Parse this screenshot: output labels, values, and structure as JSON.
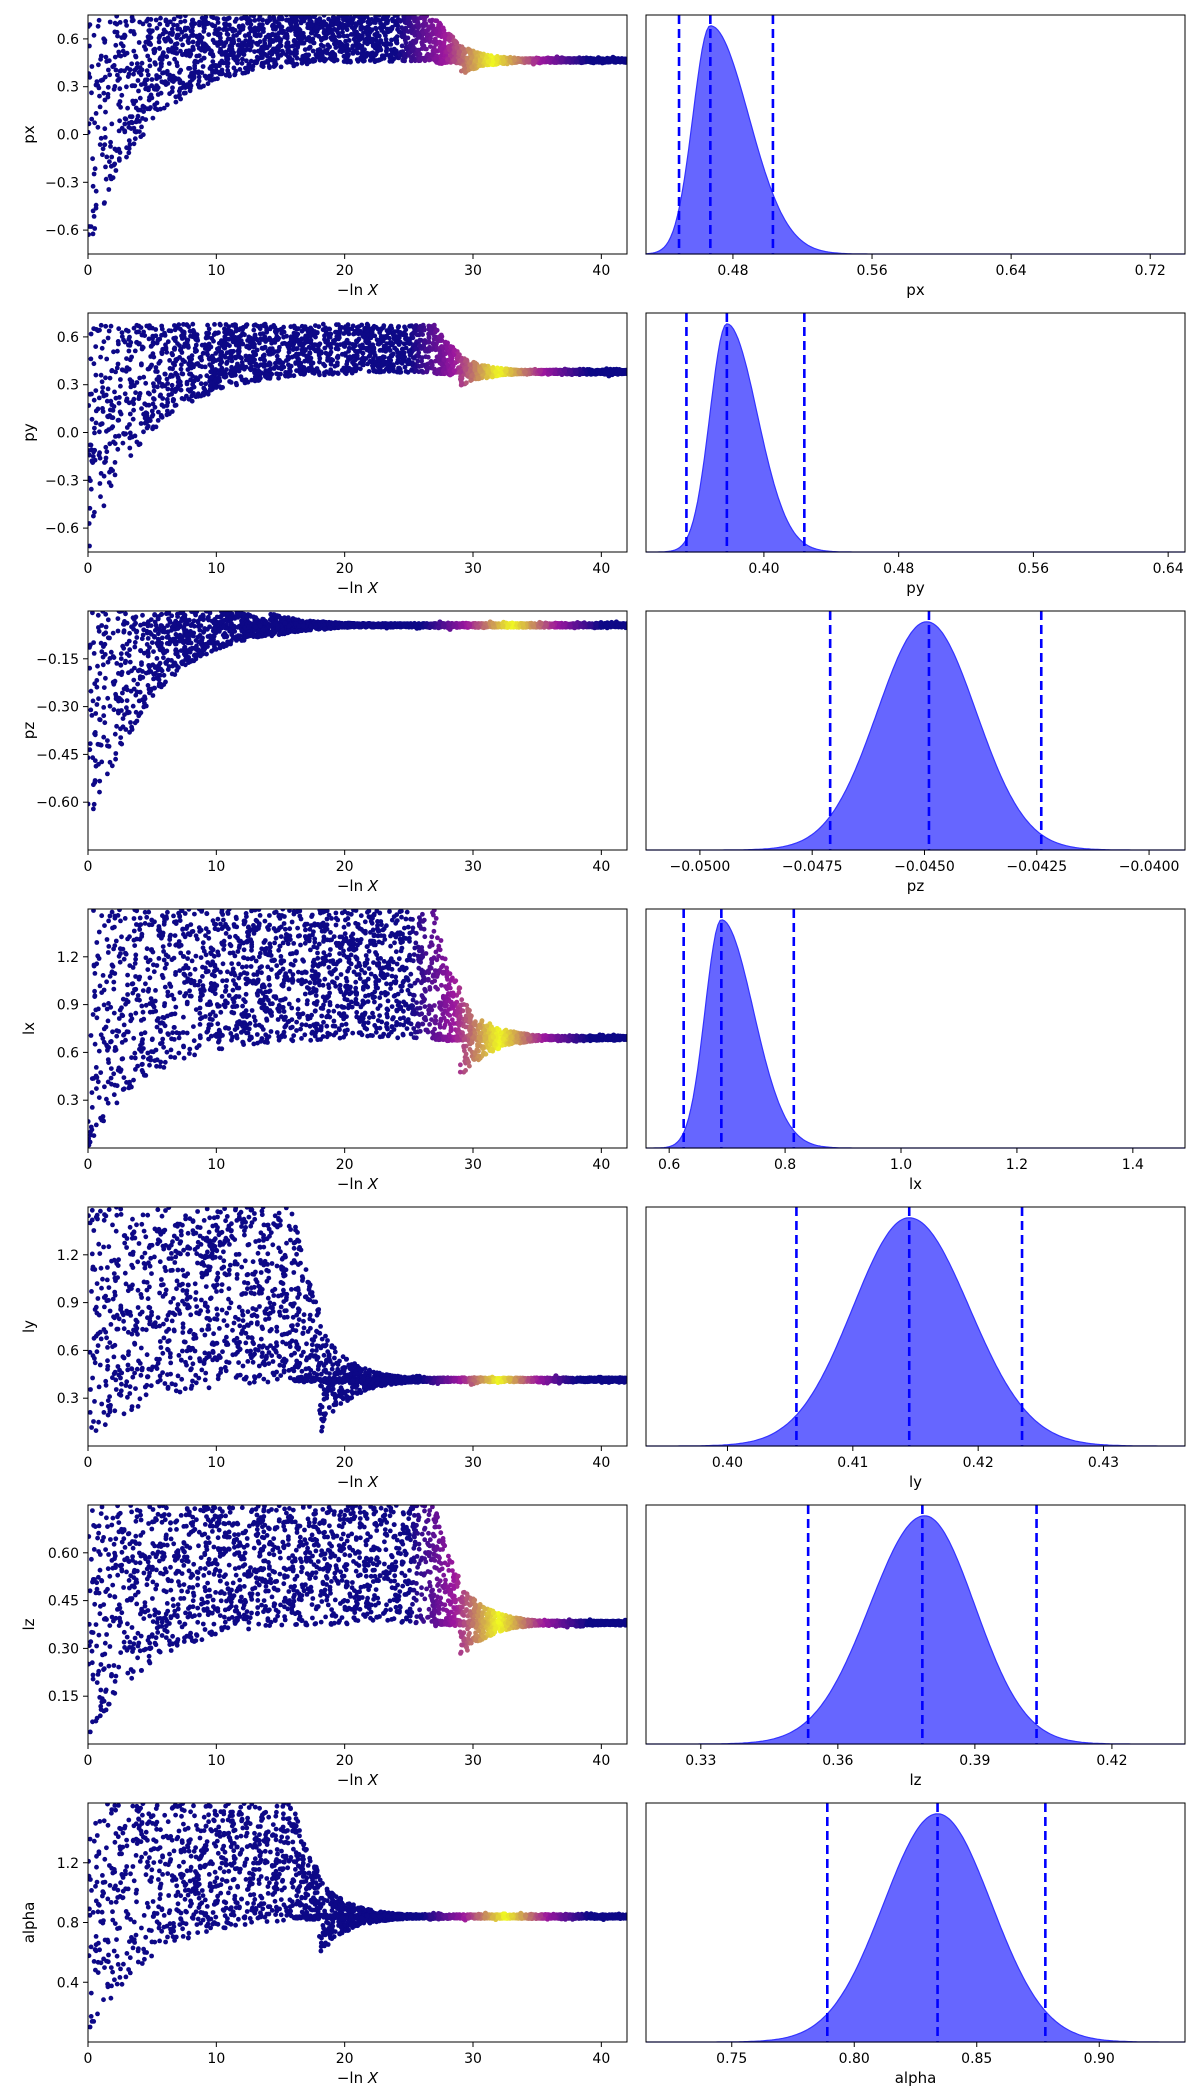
{
  "trace_x_axis": {
    "label_prefix": "−ln",
    "label_var": "X",
    "range": [
      0,
      42
    ],
    "ticks": [
      "0",
      "10",
      "20",
      "30",
      "40"
    ]
  },
  "colors": {
    "scatter_low": "#0d0887",
    "scatter_mid": "#9c179e",
    "scatter_high": "#f0f921",
    "posterior_fill": "#6666ff",
    "posterior_edge": "#3333ff",
    "quantile_line": "#0000ff"
  },
  "chart_data": [
    {
      "type": "scatter",
      "param": "px",
      "trace": {
        "ylabel": "px",
        "ylim": [
          -0.75,
          0.75
        ],
        "yticks": [
          "0.6",
          "0.3",
          "0.0",
          "−0.3",
          "−0.6"
        ],
        "ytick_values": [
          0.6,
          0.3,
          0.0,
          -0.3,
          -0.6
        ],
        "final_value": 0.465,
        "envelope_top": 0.75,
        "bright_range": [
          27,
          36
        ],
        "noisy_until": 27,
        "lower_bound_start": -0.75
      },
      "posterior": {
        "xlabel": "px",
        "xlim": [
          0.43,
          0.74
        ],
        "xticks": [
          "0.48",
          "0.56",
          "0.64",
          "0.72"
        ],
        "xtick_values": [
          0.48,
          0.56,
          0.64,
          0.72
        ],
        "mode": 0.467,
        "quantiles": [
          0.449,
          0.467,
          0.503
        ],
        "left_width": 0.01,
        "right_width": 0.022
      }
    },
    {
      "type": "scatter",
      "param": "py",
      "trace": {
        "ylabel": "py",
        "ylim": [
          -0.75,
          0.75
        ],
        "yticks": [
          "0.6",
          "0.3",
          "0.0",
          "−0.3",
          "−0.6"
        ],
        "ytick_values": [
          0.6,
          0.3,
          0.0,
          -0.3,
          -0.6
        ],
        "final_value": 0.38,
        "envelope_top": 0.68,
        "bright_range": [
          28,
          36
        ],
        "noisy_until": 27,
        "lower_bound_start": -0.75
      },
      "posterior": {
        "xlabel": "py",
        "xlim": [
          0.33,
          0.65
        ],
        "xticks": [
          "0.40",
          "0.48",
          "0.56",
          "0.64"
        ],
        "xtick_values": [
          0.4,
          0.48,
          0.56,
          0.64
        ],
        "mode": 0.378,
        "quantiles": [
          0.354,
          0.378,
          0.424
        ],
        "left_width": 0.01,
        "right_width": 0.018
      }
    },
    {
      "type": "scatter",
      "param": "pz",
      "trace": {
        "ylabel": "pz",
        "ylim": [
          -0.75,
          0.0
        ],
        "yticks": [
          "−0.15",
          "−0.30",
          "−0.45",
          "−0.60"
        ],
        "ytick_values": [
          -0.15,
          -0.3,
          -0.45,
          -0.6
        ],
        "final_value": -0.045,
        "envelope_top": 0.0,
        "bright_range": [
          29,
          37
        ],
        "noisy_until": 12,
        "lower_bound_start": -0.75
      },
      "posterior": {
        "xlabel": "pz",
        "xlim": [
          -0.0512,
          -0.0392
        ],
        "xticks": [
          "−0.0500",
          "−0.0475",
          "−0.0450",
          "−0.0425",
          "−0.0400"
        ],
        "xtick_values": [
          -0.05,
          -0.0475,
          -0.045,
          -0.0425,
          -0.04
        ],
        "mode": -0.04495,
        "quantiles": [
          -0.0471,
          -0.0449,
          -0.0424
        ],
        "left_width": 0.0011,
        "right_width": 0.0011
      }
    },
    {
      "type": "scatter",
      "param": "lx",
      "trace": {
        "ylabel": "lx",
        "ylim": [
          0.0,
          1.5
        ],
        "yticks": [
          "1.2",
          "0.9",
          "0.6",
          "0.3"
        ],
        "ytick_values": [
          1.2,
          0.9,
          0.6,
          0.3
        ],
        "final_value": 0.69,
        "envelope_top": 1.5,
        "bright_range": [
          28,
          36
        ],
        "noisy_until": 27,
        "lower_bound_start": 0.0
      },
      "posterior": {
        "xlabel": "lx",
        "xlim": [
          0.56,
          1.49
        ],
        "xticks": [
          "0.6",
          "0.8",
          "1.0",
          "1.2",
          "1.4"
        ],
        "xtick_values": [
          0.6,
          0.8,
          1.0,
          1.2,
          1.4
        ],
        "mode": 0.69,
        "quantiles": [
          0.625,
          0.69,
          0.815
        ],
        "left_width": 0.028,
        "right_width": 0.055
      }
    },
    {
      "type": "scatter",
      "param": "ly",
      "trace": {
        "ylabel": "ly",
        "ylim": [
          0.0,
          1.5
        ],
        "yticks": [
          "1.2",
          "0.9",
          "0.6",
          "0.3"
        ],
        "ytick_values": [
          1.2,
          0.9,
          0.6,
          0.3
        ],
        "final_value": 0.415,
        "envelope_top": 1.5,
        "bright_range": [
          29,
          35
        ],
        "noisy_until": 16,
        "lower_bound_start": 0.0
      },
      "posterior": {
        "xlabel": "ly",
        "xlim": [
          0.3935,
          0.4365
        ],
        "xticks": [
          "0.40",
          "0.41",
          "0.42",
          "0.43"
        ],
        "xtick_values": [
          0.4,
          0.41,
          0.42,
          0.43
        ],
        "mode": 0.4145,
        "quantiles": [
          0.4055,
          0.4145,
          0.4235
        ],
        "left_width": 0.0045,
        "right_width": 0.0048
      }
    },
    {
      "type": "scatter",
      "param": "lz",
      "trace": {
        "ylabel": "lz",
        "ylim": [
          0.0,
          0.75
        ],
        "yticks": [
          "0.60",
          "0.45",
          "0.30",
          "0.15"
        ],
        "ytick_values": [
          0.6,
          0.45,
          0.3,
          0.15
        ],
        "final_value": 0.38,
        "envelope_top": 0.75,
        "bright_range": [
          28,
          36
        ],
        "noisy_until": 27,
        "lower_bound_start": 0.0
      },
      "posterior": {
        "xlabel": "lz",
        "xlim": [
          0.318,
          0.436
        ],
        "xticks": [
          "0.33",
          "0.36",
          "0.39",
          "0.42"
        ],
        "xtick_values": [
          0.33,
          0.36,
          0.39,
          0.42
        ],
        "mode": 0.379,
        "quantiles": [
          0.3535,
          0.3785,
          0.4035
        ],
        "left_width": 0.012,
        "right_width": 0.011
      }
    },
    {
      "type": "scatter",
      "param": "alpha",
      "trace": {
        "ylabel": "alpha",
        "ylim": [
          0.0,
          1.6
        ],
        "yticks": [
          "1.2",
          "0.8",
          "0.4"
        ],
        "ytick_values": [
          1.2,
          0.8,
          0.4
        ],
        "final_value": 0.84,
        "envelope_top": 1.6,
        "bright_range": [
          29,
          36
        ],
        "noisy_until": 16,
        "lower_bound_start": 0.0
      },
      "posterior": {
        "xlabel": "alpha",
        "xlim": [
          0.715,
          0.935
        ],
        "xticks": [
          "0.75",
          "0.80",
          "0.85",
          "0.90"
        ],
        "xtick_values": [
          0.75,
          0.8,
          0.85,
          0.9
        ],
        "mode": 0.834,
        "quantiles": [
          0.789,
          0.834,
          0.878
        ],
        "left_width": 0.022,
        "right_width": 0.022
      }
    }
  ]
}
